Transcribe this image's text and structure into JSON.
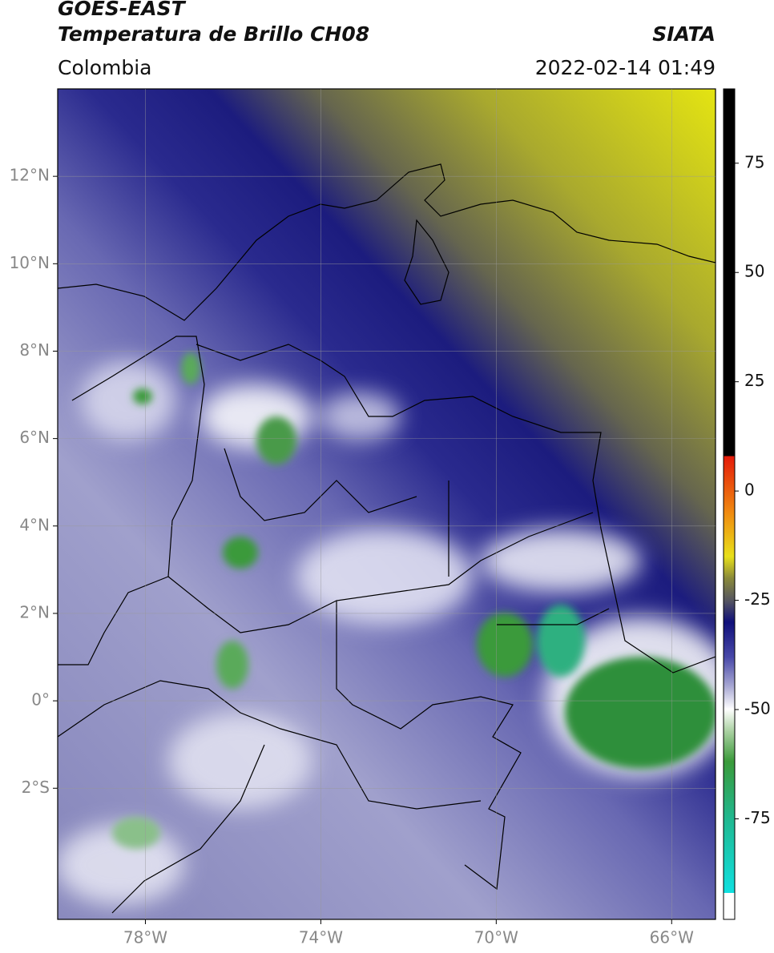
{
  "header": {
    "title": "GOES-EAST",
    "subtitle": "Temperatura de Brillo CH08",
    "source": "SIATA",
    "region": "Colombia",
    "timestamp": "2022-02-14 01:49"
  },
  "map": {
    "xlim": [
      -80,
      -65
    ],
    "ylim": [
      -5,
      14
    ],
    "xticks": [
      {
        "value": -78,
        "label": "78°W"
      },
      {
        "value": -74,
        "label": "74°W"
      },
      {
        "value": -70,
        "label": "70°W"
      },
      {
        "value": -66,
        "label": "66°W"
      }
    ],
    "yticks": [
      {
        "value": 12,
        "label": "12°N"
      },
      {
        "value": 10,
        "label": "10°N"
      },
      {
        "value": 8,
        "label": "8°N"
      },
      {
        "value": 6,
        "label": "6°N"
      },
      {
        "value": 4,
        "label": "4°N"
      },
      {
        "value": 2,
        "label": "2°N"
      },
      {
        "value": 0,
        "label": "0°"
      },
      {
        "value": -2,
        "label": "2°S"
      }
    ],
    "grid": true
  },
  "colorbar": {
    "lim": [
      -98,
      92
    ],
    "ticks": [
      75,
      50,
      25,
      0,
      -25,
      -50,
      -75
    ]
  }
}
